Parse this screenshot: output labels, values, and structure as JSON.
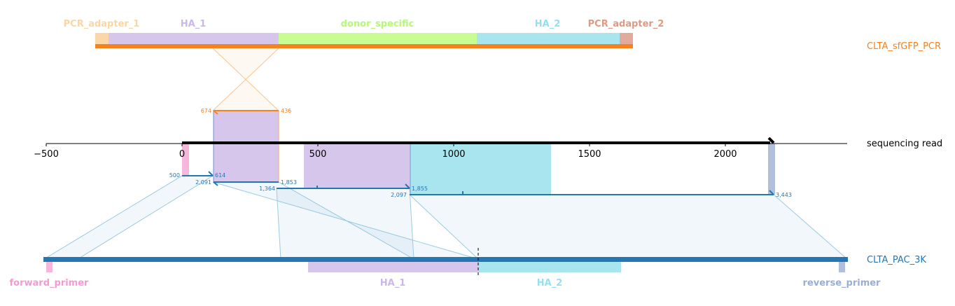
{
  "tracks": {
    "pcr": {
      "name": "CLTA_sfGFP_PCR",
      "color": "#f58220",
      "features": [
        {
          "name": "PCR_adapter_1",
          "color": "#fbd7a8",
          "label_color": "#fbd5a3"
        },
        {
          "name": "HA_1",
          "color": "#d7c6ec",
          "label_color": "#cbb8ea"
        },
        {
          "name": "donor_specific",
          "color": "#c9fd93",
          "label_color": "#b6f77a"
        },
        {
          "name": "HA_2",
          "color": "#a9e5ef",
          "label_color": "#95e0ee"
        },
        {
          "name": "PCR_adapter_2",
          "color": "#e2aa9c",
          "label_color": "#dc9b85"
        }
      ]
    },
    "read": {
      "name": "sequencing read",
      "color": "#000000"
    },
    "reference": {
      "name": "CLTA_PAC_3K",
      "color": "#2577b3",
      "features": [
        {
          "name": "forward_primer",
          "color": "#f7b6dc",
          "label_color": "#f49ad3"
        },
        {
          "name": "HA_1",
          "color": "#d7c6ec",
          "label_color": "#cbb8ea"
        },
        {
          "name": "HA_2",
          "color": "#a9e5ef",
          "label_color": "#95e0ee"
        },
        {
          "name": "reverse_primer",
          "color": "#b2bfdc",
          "label_color": "#9aaed4"
        }
      ]
    }
  },
  "axis": {
    "ticks": [
      "−500",
      "0",
      "500",
      "1000",
      "1500",
      "2000"
    ]
  },
  "alignments": {
    "pcr_to_read": {
      "query_start": "674",
      "query_end": "436",
      "color": "#f58220"
    },
    "read_to_reference": [
      {
        "start": "500",
        "end": "614"
      },
      {
        "start": "2,091",
        "end": "1,853"
      },
      {
        "start": "1,364",
        "end": ""
      },
      {
        "start": "2,097",
        "end": "1,855"
      },
      {
        "start": "",
        "end": "3,443"
      }
    ],
    "ref_color": "#2577b3"
  }
}
